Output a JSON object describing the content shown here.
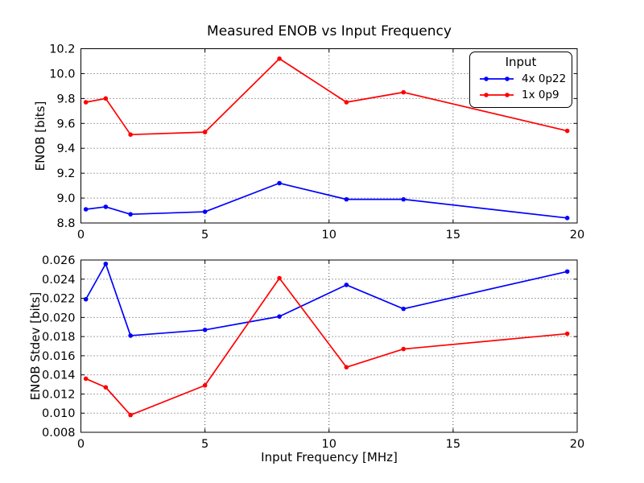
{
  "figure": {
    "title": "Measured ENOB vs Input Frequency",
    "xlabel": "Input Frequency [MHz]",
    "background": "#ffffff",
    "axis_color": "#000000",
    "grid_color": "#333333"
  },
  "legend": {
    "title": "Input",
    "position": "upper right",
    "entries": [
      {
        "label": "4x 0p22",
        "color": "#0000ff"
      },
      {
        "label": "1x 0p9",
        "color": "#ff0000"
      }
    ]
  },
  "chart_data": [
    {
      "type": "line",
      "title": "Measured ENOB vs Input Frequency",
      "xlabel": "",
      "ylabel": "ENOB [bits]",
      "x": [
        0.2,
        1,
        2,
        5,
        8,
        10.7,
        13,
        19.6
      ],
      "series": [
        {
          "name": "4x 0p22",
          "color": "#0000ff",
          "values": [
            8.91,
            8.93,
            8.87,
            8.89,
            9.12,
            8.99,
            8.99,
            8.84
          ]
        },
        {
          "name": "1x 0p9",
          "color": "#ff0000",
          "values": [
            9.77,
            9.8,
            9.51,
            9.53,
            10.12,
            9.77,
            9.85,
            9.54
          ]
        }
      ],
      "xlim": [
        0,
        20
      ],
      "ylim": [
        8.8,
        10.2
      ],
      "xticks": [
        0,
        5,
        10,
        15,
        20
      ],
      "xtick_labels": [
        "0",
        "5",
        "10",
        "15",
        "20"
      ],
      "yticks": [
        8.8,
        9.0,
        9.2,
        9.4,
        9.6,
        9.8,
        10.0,
        10.2
      ],
      "ytick_labels": [
        "8.8",
        "9.0",
        "9.2",
        "9.4",
        "9.6",
        "9.8",
        "10.0",
        "10.2"
      ],
      "grid": true,
      "legend_position": "upper right"
    },
    {
      "type": "line",
      "title": "",
      "xlabel": "Input Frequency [MHz]",
      "ylabel": "ENOB Stdev [bits]",
      "x": [
        0.2,
        1,
        2,
        5,
        8,
        10.7,
        13,
        19.6
      ],
      "series": [
        {
          "name": "4x 0p22",
          "color": "#0000ff",
          "values": [
            0.0219,
            0.0256,
            0.0181,
            0.0187,
            0.0201,
            0.0234,
            0.0209,
            0.0248
          ]
        },
        {
          "name": "1x 0p9",
          "color": "#ff0000",
          "values": [
            0.0136,
            0.0127,
            0.0098,
            0.0129,
            0.0241,
            0.0148,
            0.0167,
            0.0183
          ]
        }
      ],
      "xlim": [
        0,
        20
      ],
      "ylim": [
        0.008,
        0.026
      ],
      "xticks": [
        0,
        5,
        10,
        15,
        20
      ],
      "xtick_labels": [
        "0",
        "5",
        "10",
        "15",
        "20"
      ],
      "yticks": [
        0.008,
        0.01,
        0.012,
        0.014,
        0.016,
        0.018,
        0.02,
        0.022,
        0.024,
        0.026
      ],
      "ytick_labels": [
        "0.008",
        "0.010",
        "0.012",
        "0.014",
        "0.016",
        "0.018",
        "0.020",
        "0.022",
        "0.024",
        "0.026"
      ],
      "grid": true,
      "legend_position": "none"
    }
  ]
}
